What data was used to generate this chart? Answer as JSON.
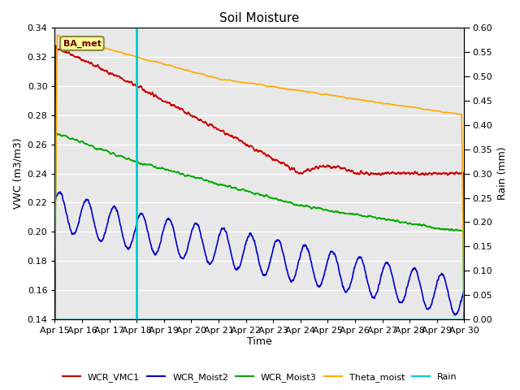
{
  "title": "Soil Moisture",
  "ylabel_left": "VWC (m3/m3)",
  "ylabel_right": "Rain (mm)",
  "xlabel": "Time",
  "annotation_label": "BA_met",
  "vline_x": 3.0,
  "xlim": [
    0,
    15
  ],
  "ylim_left": [
    0.14,
    0.34
  ],
  "ylim_right": [
    0.0,
    0.6
  ],
  "xtick_labels": [
    "Apr 15",
    "Apr 16",
    "Apr 17",
    "Apr 18",
    "Apr 19",
    "Apr 20",
    "Apr 21",
    "Apr 22",
    "Apr 23",
    "Apr 24",
    "Apr 25",
    "Apr 26",
    "Apr 27",
    "Apr 28",
    "Apr 29",
    "Apr 30"
  ],
  "xtick_positions": [
    0,
    1,
    2,
    3,
    4,
    5,
    6,
    7,
    8,
    9,
    10,
    11,
    12,
    13,
    14,
    15
  ],
  "ytick_left": [
    0.14,
    0.16,
    0.18,
    0.2,
    0.22,
    0.24,
    0.26,
    0.28,
    0.3,
    0.32,
    0.34
  ],
  "ytick_right": [
    0.0,
    0.05,
    0.1,
    0.15,
    0.2,
    0.25,
    0.3,
    0.35,
    0.4,
    0.45,
    0.5,
    0.55,
    0.6
  ],
  "colors": {
    "WCR_VMC1": "#cc0000",
    "WCR_Moist2": "#0000cc",
    "WCR_Moist3": "#00aa00",
    "Theta_moist": "#ffaa00",
    "Rain": "#00cccc",
    "vline": "#00cccc",
    "bg_plot": "#e8e8e8",
    "annotation_bg": "#ffff99",
    "annotation_border": "#888844",
    "annotation_text": "#660000"
  },
  "bg_color": "#ffffff",
  "figsize": [
    6.4,
    4.8
  ],
  "dpi": 100
}
